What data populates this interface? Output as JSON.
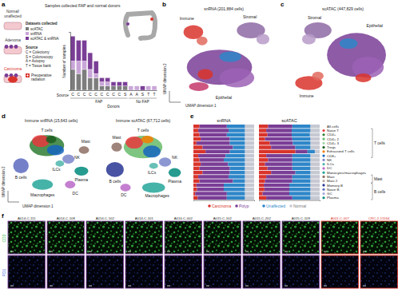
{
  "figure": {
    "panel_labels": [
      "a",
      "b",
      "c",
      "d",
      "e",
      "f"
    ],
    "a": {
      "header": "Samples collected FAP and normal donors",
      "stages": [
        [
          "Normal/",
          "unaffected"
        ],
        [
          "Adenoma"
        ],
        [
          "Carcinoma"
        ]
      ],
      "datasets_title": "Datasets collected",
      "source_title": "Source",
      "sources": [
        "C = Colectomy",
        "S = Colonoscopy",
        "A = Autopsy",
        "T = Tissue bank"
      ],
      "radiation": [
        "Preoperative",
        "radiation"
      ]
    },
    "b": {
      "title": "snRNA (201,884 cells)",
      "clusters": [
        "Immune",
        "Stromal",
        "Epithelial"
      ],
      "xlabel": "UMAP dimension 1",
      "ylabel": "UMAP dimension 2"
    },
    "c": {
      "title": "scATAC (447,829 cells)",
      "clusters": [
        "Stromal",
        "Epithelial",
        "Immune"
      ]
    },
    "d": {
      "panels": [
        {
          "title": "Immune snRNA (15,643 cells)",
          "clusters": [
            "T cells",
            "NK",
            "ILCs",
            "Mast",
            "Plasma",
            "B cells",
            "Macrophages",
            "DC"
          ]
        },
        {
          "title": "Immune scATAC (67,712 cells)",
          "clusters": [
            "T cells",
            "NK",
            "ILCs",
            "Mast",
            "B cells",
            "Plasma",
            "DC",
            "Macrophages"
          ]
        }
      ],
      "xlabel": "UMAP dimension 1",
      "ylabel": "UMAP dimension 2"
    },
    "f": {
      "samples": [
        "A014-C-111",
        "A014-C-108",
        "A014-C-102",
        "A014-C-101",
        "A014-C-002",
        "A015-C-102",
        "A015-C-202",
        "A015-C-109",
        "A001-C-007",
        "CRC-2-15564"
      ],
      "colors": [
        "#7a3e96",
        "#7a3e96",
        "#7a3e96",
        "#7a3e96",
        "#7a3e96",
        "#7a3e96",
        "#7a3e96",
        "#7a3e96",
        "#d9342b",
        "#d9342b"
      ],
      "rows": [
        "CD3",
        "PD1"
      ]
    }
  },
  "chart_data": [
    {
      "type": "bar",
      "stacked": true,
      "tick_labels": "x",
      "ylabel": "Number of samples",
      "category_label": "Source",
      "xlabel": "Donors",
      "categories": [
        "C",
        "C",
        "C",
        "C",
        "C",
        "C",
        "C",
        "C",
        "C",
        "S",
        "A",
        "A",
        "S",
        "T",
        "T"
      ],
      "category_groups": [
        "FAP",
        "FAP",
        "FAP",
        "FAP",
        "FAP",
        "FAP",
        "FAP",
        "FAP",
        "FAP",
        "FAP",
        "No FAP",
        "No FAP",
        "No FAP",
        "No FAP",
        "No FAP"
      ],
      "ylim": [
        0,
        14
      ],
      "series": [
        {
          "name": "scATAC",
          "color": "#7d7d7d",
          "values": [
            5,
            4,
            5,
            3,
            3,
            1,
            1,
            1,
            1,
            1,
            0,
            0,
            0,
            0,
            0
          ]
        },
        {
          "name": "snRNA",
          "color": "#c9a6d8",
          "values": [
            2,
            3,
            2,
            2,
            1,
            1,
            1,
            0,
            0,
            0,
            1,
            1,
            0,
            1,
            1
          ]
        },
        {
          "name": "scATAC & snRNA",
          "color": "#7a3e96",
          "values": [
            6,
            5,
            5,
            4,
            3,
            1,
            1,
            1,
            1,
            1,
            0,
            0,
            1,
            0,
            0
          ]
        }
      ]
    },
    {
      "type": "bar",
      "orientation": "horizontal",
      "stacked": true,
      "tick_labels": false,
      "xlim": [
        0,
        100
      ],
      "categories": [
        "All cells",
        "Naive T",
        "CD4+",
        "CD4+ 2",
        "CD4+ 3",
        "Tregs",
        "Exhausted T cells",
        "CD8+",
        "NK",
        "ILCs",
        "DC",
        "Monocytes/macrophages",
        "Mast",
        "Mast 2",
        "Memory B",
        "Naive B",
        "GC",
        "Plasma"
      ],
      "category_colors": [
        null,
        "#e8383d",
        "#2e7d32",
        "#66bb6a",
        "#a5d6a7",
        "#1b5e20",
        "#f57c00",
        "#1565c0",
        "#7986cb",
        "#4db6ac",
        "#ba68c8",
        "#26a69a",
        "#8d6e63",
        "#bcaaa4",
        "#283593",
        "#5c6bc0",
        "#9fa8da",
        "#00897b"
      ],
      "category_groups": [
        null,
        "T cells",
        "T cells",
        "T cells",
        "T cells",
        "T cells",
        "T cells",
        "T cells",
        null,
        null,
        null,
        null,
        "Mast",
        "Mast",
        "B cells",
        "B cells",
        "B cells",
        "B cells"
      ],
      "series": [
        {
          "name": "Carcinoma",
          "color": "#d9342b"
        },
        {
          "name": "Polyp",
          "color": "#7a3e96"
        },
        {
          "name": "Unaffected",
          "color": "#2e86c8"
        },
        {
          "name": "Normal",
          "color": "#c6c8d2"
        }
      ],
      "panels": [
        {
          "title": "snRNA",
          "values": [
            [
              10,
              8,
              10,
              12,
              5,
              15,
              20,
              8,
              10,
              12,
              10,
              15,
              8,
              10,
              5,
              6,
              3,
              7
            ],
            [
              45,
              50,
              45,
              48,
              55,
              50,
              40,
              45,
              40,
              45,
              50,
              45,
              50,
              55,
              45,
              44,
              52,
              48
            ],
            [
              30,
              27,
              30,
              25,
              25,
              20,
              25,
              32,
              35,
              28,
              25,
              25,
              27,
              20,
              35,
              35,
              30,
              30
            ],
            [
              15,
              15,
              15,
              15,
              15,
              15,
              15,
              15,
              15,
              15,
              15,
              15,
              15,
              15,
              15,
              15,
              15,
              15
            ]
          ]
        },
        {
          "title": "scATAC",
          "values": [
            [
              15,
              12,
              14,
              10,
              18,
              20,
              60,
              12,
              15,
              10,
              14,
              20,
              12,
              10,
              8,
              9,
              6,
              12
            ],
            [
              40,
              42,
              40,
              45,
              38,
              40,
              20,
              43,
              40,
              45,
              41,
              40,
              43,
              45,
              42,
              41,
              44,
              43
            ],
            [
              30,
              31,
              30,
              30,
              29,
              25,
              12,
              30,
              30,
              30,
              30,
              25,
              30,
              30,
              35,
              35,
              35,
              30
            ],
            [
              15,
              15,
              16,
              15,
              15,
              15,
              8,
              15,
              15,
              15,
              15,
              15,
              15,
              15,
              15,
              15,
              15,
              15
            ]
          ]
        }
      ]
    }
  ]
}
